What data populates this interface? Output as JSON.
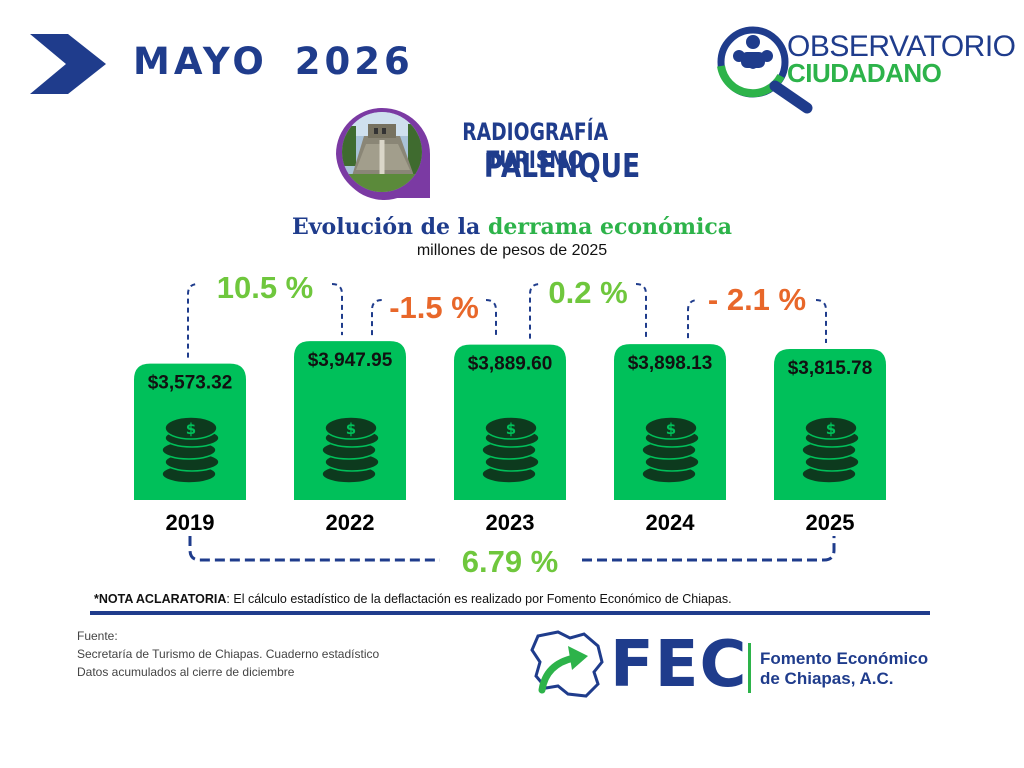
{
  "header": {
    "date_month": "MAYO",
    "date_year": "2026",
    "org_logo_line1": "OBSERVATORIO",
    "org_logo_line2": "CIUDADANO"
  },
  "badge": {
    "title": "RADIOGRAFÍA TURISMO",
    "subtitle": "PALENQUE",
    "photo_icon": "palenque-temple-photo"
  },
  "chart_data": {
    "type": "bar",
    "title_part1": "Evolución de la ",
    "title_part2": "derrama económica",
    "subtitle": "millones de pesos de 2025",
    "categories": [
      "2019",
      "2022",
      "2023",
      "2024",
      "2025"
    ],
    "values": [
      3573.32,
      3947.95,
      3889.6,
      3898.13,
      3815.78
    ],
    "value_labels": [
      "$3,573.32",
      "$3,947.95",
      "$3,889.60",
      "$3,898.13",
      "$3,815.78"
    ],
    "ylim": [
      0,
      4200
    ],
    "bar_color": "#00c05a",
    "bar_icon": "coin-stack-icon",
    "changes": [
      {
        "from": "2019",
        "to": "2022",
        "label": "10.5 %",
        "color": "#6fc73d"
      },
      {
        "from": "2022",
        "to": "2023",
        "label": "-1.5 %",
        "color": "#e8672a"
      },
      {
        "from": "2023",
        "to": "2024",
        "label": "0.2 %",
        "color": "#6fc73d"
      },
      {
        "from": "2024",
        "to": "2025",
        "label": "- 2.1 %",
        "color": "#e8672a"
      }
    ],
    "total_change": {
      "from": "2019",
      "to": "2025",
      "label": "6.79 %",
      "color": "#6fc73d"
    },
    "grid": false
  },
  "notes": {
    "nota_bold": "*NOTA ACLARATORIA",
    "nota_text": ": El cálculo estadístico de la deflactación es realizado por Fomento Económico de Chiapas.",
    "fuente_label": "Fuente:",
    "fuente_line1": "Secretaría de Turismo de Chiapas. Cuaderno estadístico",
    "fuente_line2": "Datos acumulados al cierre de diciembre"
  },
  "footer_logo": {
    "acronym": "FEC",
    "name_line1": "Fomento Económico",
    "name_line2": "de Chiapas, A.C."
  },
  "colors": {
    "navy": "#1f3c8c",
    "green": "#2db34a",
    "bar_green": "#00c05a",
    "orange": "#e8672a",
    "purple": "#7b3aa3"
  }
}
